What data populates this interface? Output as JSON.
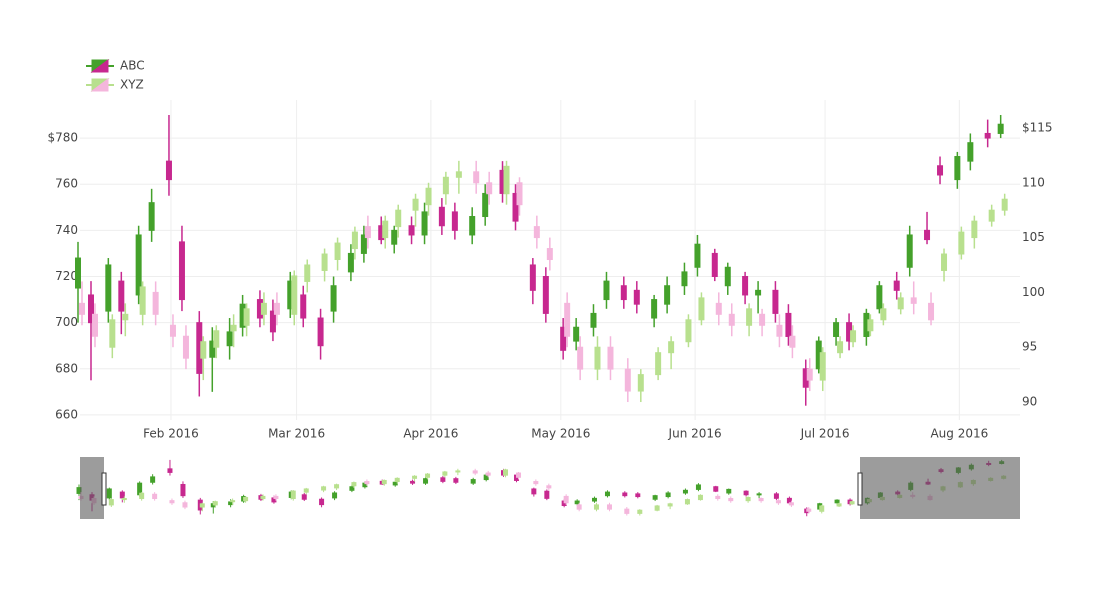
{
  "chart_data": {
    "type": "candlestick",
    "x": [
      "2016-01-11",
      "2016-01-14",
      "2016-01-18",
      "2016-01-21",
      "2016-01-25",
      "2016-01-28",
      "2016-02-01",
      "2016-02-04",
      "2016-02-08",
      "2016-02-11",
      "2016-02-15",
      "2016-02-18",
      "2016-02-22",
      "2016-02-25",
      "2016-02-29",
      "2016-03-03",
      "2016-03-07",
      "2016-03-10",
      "2016-03-14",
      "2016-03-17",
      "2016-03-21",
      "2016-03-24",
      "2016-03-28",
      "2016-03-31",
      "2016-04-04",
      "2016-04-07",
      "2016-04-11",
      "2016-04-14",
      "2016-04-18",
      "2016-04-21",
      "2016-04-25",
      "2016-04-28",
      "2016-05-02",
      "2016-05-05",
      "2016-05-09",
      "2016-05-12",
      "2016-05-16",
      "2016-05-19",
      "2016-05-23",
      "2016-05-26",
      "2016-05-30",
      "2016-06-02",
      "2016-06-06",
      "2016-06-09",
      "2016-06-13",
      "2016-06-16",
      "2016-06-20",
      "2016-06-23",
      "2016-06-27",
      "2016-06-30",
      "2016-07-04",
      "2016-07-07",
      "2016-07-11",
      "2016-07-14",
      "2016-07-18",
      "2016-07-21",
      "2016-07-25",
      "2016-07-28",
      "2016-08-01",
      "2016-08-04",
      "2016-08-08",
      "2016-08-11"
    ],
    "series": [
      {
        "name": "ABC",
        "axis": "y",
        "increasing_color": "#44a12b",
        "decreasing_color": "#c7288f",
        "open": [
          715,
          712,
          705,
          718,
          712,
          740,
          770,
          735,
          700,
          685,
          690,
          698,
          710,
          705,
          706,
          712,
          702,
          705,
          722,
          730,
          742,
          734,
          742,
          738,
          750,
          748,
          738,
          746,
          766,
          756,
          725,
          720,
          698,
          692,
          698,
          710,
          716,
          714,
          702,
          708,
          716,
          724,
          730,
          716,
          720,
          712,
          714,
          704,
          680,
          680,
          694,
          700,
          694,
          706,
          718,
          724,
          740,
          768,
          762,
          770,
          782,
          782
        ],
        "high": [
          735,
          718,
          728,
          722,
          742,
          758,
          790,
          742,
          705,
          698,
          702,
          712,
          714,
          710,
          722,
          716,
          706,
          720,
          734,
          742,
          746,
          742,
          746,
          752,
          754,
          752,
          750,
          760,
          770,
          760,
          728,
          724,
          702,
          702,
          708,
          722,
          720,
          718,
          712,
          720,
          726,
          738,
          732,
          726,
          722,
          718,
          718,
          708,
          684,
          694,
          702,
          704,
          706,
          718,
          722,
          742,
          748,
          772,
          774,
          782,
          788,
          790
        ],
        "low": [
          700,
          675,
          700,
          695,
          708,
          735,
          755,
          705,
          668,
          670,
          684,
          694,
          698,
          692,
          702,
          698,
          684,
          700,
          718,
          726,
          734,
          730,
          734,
          734,
          738,
          736,
          734,
          742,
          752,
          740,
          708,
          700,
          684,
          688,
          694,
          706,
          706,
          704,
          698,
          704,
          712,
          720,
          718,
          712,
          708,
          704,
          700,
          690,
          664,
          678,
          690,
          688,
          690,
          704,
          710,
          720,
          734,
          760,
          758,
          766,
          776,
          780
        ],
        "close": [
          728,
          700,
          725,
          705,
          738,
          752,
          762,
          710,
          678,
          692,
          696,
          708,
          702,
          696,
          718,
          702,
          690,
          716,
          730,
          738,
          736,
          740,
          738,
          748,
          742,
          740,
          746,
          756,
          756,
          744,
          714,
          704,
          688,
          698,
          704,
          718,
          710,
          708,
          710,
          716,
          722,
          734,
          720,
          724,
          712,
          714,
          704,
          694,
          672,
          692,
          700,
          692,
          704,
          716,
          714,
          738,
          736,
          764,
          772,
          778,
          780,
          786
        ]
      },
      {
        "name": "XYZ",
        "axis": "y2",
        "increasing_color": "#b8e08e",
        "decreasing_color": "#f4b6dc",
        "open": [
          99,
          98,
          95,
          97.5,
          98,
          100,
          97,
          96,
          94,
          95,
          96.5,
          97,
          98,
          99,
          98,
          101,
          102,
          103,
          104,
          106,
          105,
          106,
          107.5,
          108,
          109,
          110.5,
          111,
          110,
          109,
          110,
          106,
          104,
          99,
          95,
          93,
          95,
          93,
          91,
          92.5,
          94.5,
          95.5,
          97.5,
          99,
          98,
          97,
          98,
          97,
          96,
          93,
          92,
          94.5,
          95.5,
          96.5,
          97.5,
          98.5,
          99.5,
          99,
          102,
          103.5,
          105,
          106.5,
          107.5
        ],
        "high": [
          101,
          99,
          98,
          99,
          101,
          101,
          98,
          97,
          96,
          97,
          98,
          99,
          100,
          100,
          102,
          103,
          104,
          105,
          106,
          107,
          107,
          108,
          109,
          110,
          111,
          112,
          112,
          111,
          112,
          110.5,
          107,
          105,
          100,
          96,
          96,
          96,
          94,
          93,
          95,
          96,
          98,
          100,
          100,
          99,
          99,
          98.5,
          98,
          97,
          94,
          95,
          96,
          97,
          98,
          99,
          100,
          101,
          100,
          104,
          106,
          107,
          108,
          109
        ],
        "low": [
          97,
          95,
          94,
          96,
          97,
          97,
          95,
          93,
          92,
          94,
          95,
          96,
          97,
          97,
          97,
          100,
          101,
          102,
          103,
          104,
          104,
          105,
          106,
          107,
          108,
          109,
          109,
          108,
          108,
          107,
          104,
          102,
          95,
          92,
          92,
          92,
          90,
          90,
          92,
          93,
          95,
          97,
          97,
          96,
          96,
          96,
          95,
          94,
          91,
          91,
          94,
          95,
          96,
          97,
          98,
          98,
          97,
          101,
          103,
          104,
          106,
          107
        ],
        "close": [
          98,
          96,
          97.5,
          98,
          100.5,
          98,
          96,
          94,
          95.5,
          96.5,
          97,
          98.5,
          99,
          98,
          101.5,
          102.5,
          103.5,
          104.5,
          105.5,
          105,
          106.5,
          107.5,
          108.5,
          109.5,
          110.5,
          111,
          110,
          109,
          111.5,
          108,
          105,
          103,
          96,
          93,
          95,
          93,
          91,
          92.5,
          94.5,
          95.5,
          97.5,
          99.5,
          98,
          97,
          98.5,
          97,
          96,
          95,
          92,
          94.5,
          95.5,
          96.5,
          97.5,
          98.5,
          99.5,
          99,
          97.5,
          103.5,
          105.5,
          106.5,
          107.5,
          108.5
        ]
      }
    ],
    "xlim": [
      "2016-01-11",
      "2016-08-15"
    ],
    "xticks": [
      {
        "value": "2016-02-01",
        "label": "Feb 2016"
      },
      {
        "value": "2016-03-01",
        "label": "Mar 2016"
      },
      {
        "value": "2016-04-01",
        "label": "Apr 2016"
      },
      {
        "value": "2016-05-01",
        "label": "May 2016"
      },
      {
        "value": "2016-06-01",
        "label": "Jun 2016"
      },
      {
        "value": "2016-07-01",
        "label": "Jul 2016"
      },
      {
        "value": "2016-08-01",
        "label": "Aug 2016"
      }
    ],
    "ylim": [
      657.8,
      796.5
    ],
    "yticks": [
      {
        "value": 780,
        "label": "$780"
      },
      760,
      740,
      720,
      700,
      680,
      660
    ],
    "y2lim": [
      88.36,
      117.55
    ],
    "y2ticks": [
      {
        "value": 115,
        "label": "$115"
      },
      110,
      105,
      100,
      95,
      90
    ],
    "grid": true,
    "legend": "top-left",
    "rangeslider": true
  }
}
